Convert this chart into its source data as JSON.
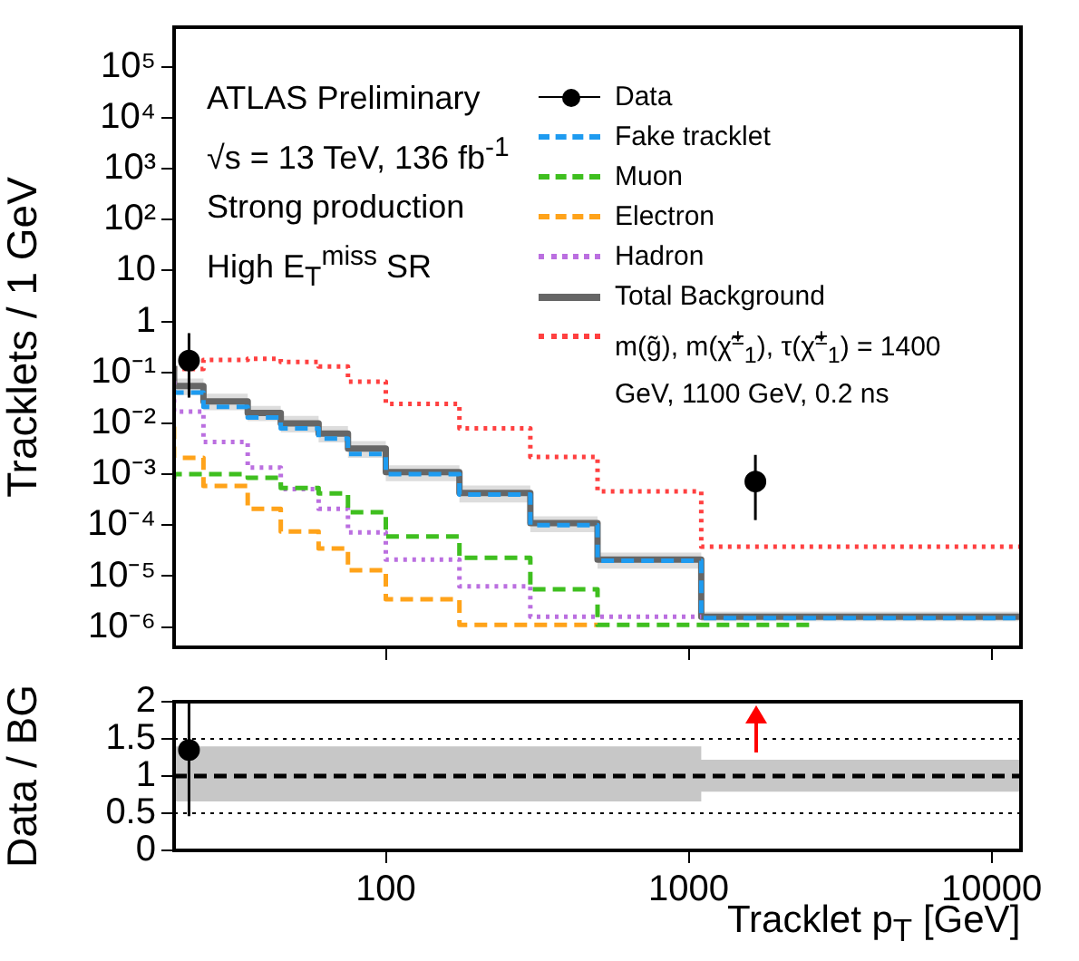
{
  "chart_data": [
    {
      "type": "step",
      "ylabel": "Tracklets / 1 GeV",
      "log": "xy",
      "grid": false,
      "legend": "top right",
      "tick_labels": "y",
      "annotations": [
        "ATLAS Preliminary",
        "√s = 13 TeV, 136 fb$^{-1}$",
        "Strong production",
        "High E$_{T}$$^{miss}$ SR"
      ],
      "x": [
        20,
        25,
        35,
        45,
        60,
        75,
        100,
        175,
        300,
        500,
        1100,
        2500,
        12500
      ],
      "xlim": [
        20,
        12500
      ],
      "xticks": [
        100,
        1000,
        10000
      ],
      "ylim": [
        4e-07,
        600000
      ],
      "yticks": [
        {
          "value": 1e-06,
          "label": "10⁻⁶"
        },
        {
          "value": 1e-05,
          "label": "10⁻⁵"
        },
        {
          "value": 0.0001,
          "label": "10⁻⁴"
        },
        {
          "value": 0.001,
          "label": "10⁻³"
        },
        {
          "value": 0.01,
          "label": "10⁻²"
        },
        {
          "value": 0.1,
          "label": "10⁻¹"
        },
        1,
        10,
        {
          "value": 100,
          "label": "10²"
        },
        {
          "value": 1000,
          "label": "10³"
        },
        {
          "value": 10000,
          "label": "10⁴"
        },
        {
          "value": 100000,
          "label": "10⁵"
        }
      ],
      "series": [
        {
          "name": "Data",
          "type": "scatter",
          "marker": "circle",
          "color": "#000000",
          "x": [
            22.4,
            1660
          ],
          "values": [
            0.17,
            0.00072
          ],
          "errors": [
            [
              0.032,
              0.59
            ],
            [
              0.000126,
              0.0024
            ]
          ]
        },
        {
          "name": "Fake tracklet",
          "color": "#1e9bf0",
          "line_style": "dashed",
          "values": [
            0.046,
            0.04,
            0.021,
            0.013,
            0.008,
            0.005,
            0.0025,
            0.001,
            0.0004,
            0.0001,
            2e-05,
            1.5e-06,
            1.5e-06
          ]
        },
        {
          "name": "Muon",
          "color": "#3fbf1f",
          "line_style": "dashed",
          "x": [
            20,
            25,
            35,
            45,
            60,
            75,
            100,
            175,
            300,
            500,
            1100,
            2500
          ],
          "values": [
            0.0008,
            0.001,
            0.001,
            0.00085,
            0.00054,
            0.00042,
            0.00018,
            6e-05,
            2.3e-05,
            5.5e-06,
            1.1e-06,
            1.1e-06
          ]
        },
        {
          "name": "Electron",
          "color": "#ffa31a",
          "line_style": "dashed",
          "x": [
            20,
            25,
            35,
            45,
            60,
            75,
            100,
            175,
            300,
            500
          ],
          "values": [
            0.0086,
            0.0021,
            0.00059,
            0.00021,
            7.5e-05,
            3.5e-05,
            1.3e-05,
            3.5e-06,
            1.1e-06,
            1.1e-06
          ]
        },
        {
          "name": "Hadron",
          "color": "#bb6fe0",
          "line_style": "dotted",
          "x": [
            20,
            25,
            35,
            45,
            60,
            75,
            100,
            175,
            300,
            500,
            1100
          ],
          "values": [
            0.068,
            0.017,
            0.0043,
            0.00135,
            0.00051,
            0.00021,
            7.2e-05,
            2.1e-05,
            6.3e-06,
            1.6e-06,
            1.6e-06
          ]
        },
        {
          "name": "Total Background",
          "color": "#666666",
          "line_style": "solid",
          "values": [
            0.135,
            0.054,
            0.027,
            0.016,
            0.01,
            0.0063,
            0.0032,
            0.0011,
            0.00043,
            0.00011,
            2.1e-05,
            1.6e-06,
            1.6e-06
          ],
          "lower": [
            0.068,
            0.036,
            0.018,
            0.011,
            0.0066,
            0.0042,
            0.0021,
            0.00073,
            0.00028,
            7.3e-05,
            1.4e-05,
            1.3e-06,
            1.3e-06
          ],
          "upper": [
            0.21,
            0.076,
            0.038,
            0.022,
            0.014,
            0.0088,
            0.0045,
            0.0015,
            0.0006,
            0.00015,
            2.9e-05,
            2e-06,
            2e-06
          ]
        },
        {
          "name": "m(g̃), m(χ̃$^{±}$$_{1}$), τ(χ̃$^{±}$$_{1}$) = 1400 GeV, 1100 GeV, 0.2 ns",
          "color": "#ff4040",
          "line_style": "dotted",
          "values": [
            0.075,
            0.117,
            0.175,
            0.185,
            0.16,
            0.13,
            0.066,
            0.024,
            0.008,
            0.0022,
            0.00046,
            3.8e-05,
            3.8e-05
          ]
        }
      ]
    },
    {
      "type": "step",
      "xlabel": "Tracklet p$_{T}$ [GeV]",
      "ylabel": "Data / BG",
      "log": "x",
      "grid": false,
      "x": [
        20,
        25,
        35,
        45,
        60,
        75,
        100,
        175,
        300,
        500,
        1100,
        2500,
        12500
      ],
      "xlim": [
        20,
        12500
      ],
      "xticks": [
        100,
        1000,
        10000
      ],
      "ylim": [
        0,
        2
      ],
      "yticks": [
        0,
        0.5,
        1,
        1.5,
        2
      ],
      "ref_lines": [
        {
          "axis": "y",
          "value": 0.5,
          "line_style": "dotted",
          "color": "#000000"
        },
        {
          "axis": "y",
          "value": 1.5,
          "line_style": "dotted",
          "color": "#000000"
        }
      ],
      "series": [
        {
          "color": "#000000",
          "line_style": "dashed",
          "values": [
            1,
            1,
            1,
            1,
            1,
            1,
            1,
            1,
            1,
            1,
            1,
            1,
            1
          ],
          "lower": [
            0.5,
            0.66,
            0.66,
            0.66,
            0.66,
            0.66,
            0.66,
            0.66,
            0.66,
            0.66,
            0.66,
            0.79,
            0.79
          ],
          "upper": [
            1.58,
            1.4,
            1.4,
            1.4,
            1.4,
            1.4,
            1.4,
            1.4,
            1.4,
            1.4,
            1.4,
            1.22,
            1.22
          ]
        },
        {
          "type": "scatter",
          "marker": "circle",
          "color": "#000000",
          "x": [
            22.4
          ],
          "values": [
            1.35
          ],
          "errors": [
            [
              0.46,
              2
            ]
          ]
        }
      ]
    }
  ]
}
